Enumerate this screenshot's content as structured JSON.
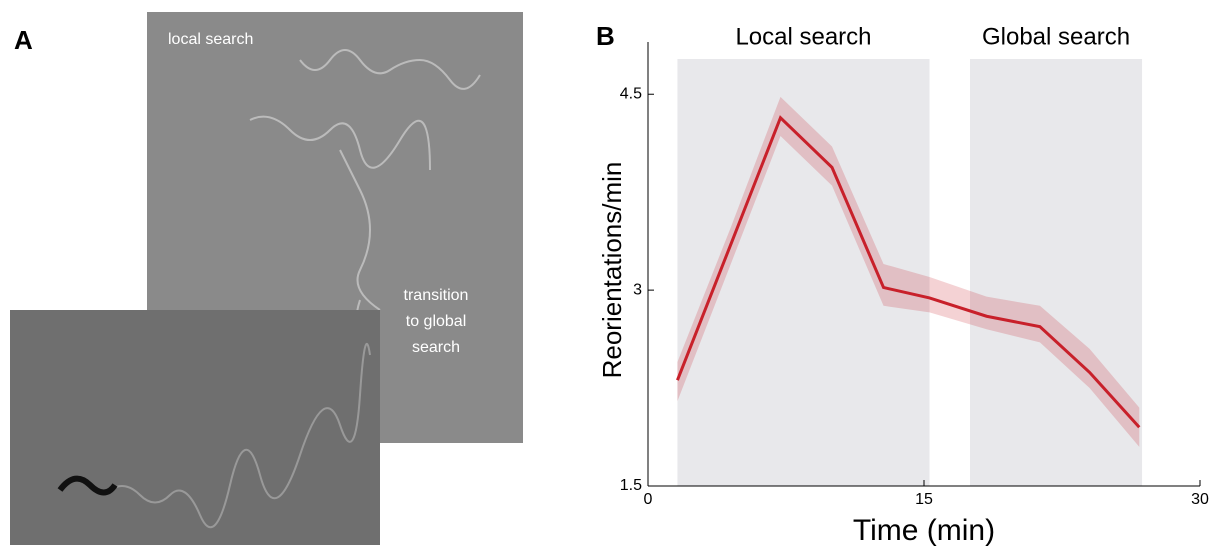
{
  "panels": {
    "a": {
      "letter": "A",
      "labels": {
        "top": "local search",
        "transition": [
          "transition",
          "to global",
          "search"
        ]
      }
    }
  },
  "chart_data": {
    "type": "line",
    "letter": "B",
    "xlabel": "Time (min)",
    "ylabel": "Reorientations/min",
    "x": [
      1.6,
      4.5,
      7.2,
      10.0,
      12.8,
      15.3,
      18.4,
      21.3,
      24.0,
      26.7
    ],
    "series": [
      {
        "color": "#c8202a",
        "values": [
          2.31,
          3.35,
          4.32,
          3.94,
          3.02,
          2.94,
          2.8,
          2.72,
          2.37,
          1.95
        ],
        "upper": [
          2.45,
          3.48,
          4.48,
          4.1,
          3.2,
          3.1,
          2.95,
          2.88,
          2.55,
          2.1
        ],
        "lower": [
          2.15,
          3.2,
          4.18,
          3.8,
          2.88,
          2.83,
          2.7,
          2.6,
          2.25,
          1.8
        ]
      }
    ],
    "regions": [
      {
        "label": "Local search",
        "xlim": [
          1.6,
          15.3
        ]
      },
      {
        "label": "Global search",
        "xlim": [
          17.5,
          26.85
        ]
      }
    ],
    "xlim": [
      0,
      30
    ],
    "xticks": [
      0,
      15,
      30
    ],
    "ylim": [
      1.5,
      4.9
    ],
    "yticks": [
      1.5,
      3,
      4.5
    ]
  }
}
